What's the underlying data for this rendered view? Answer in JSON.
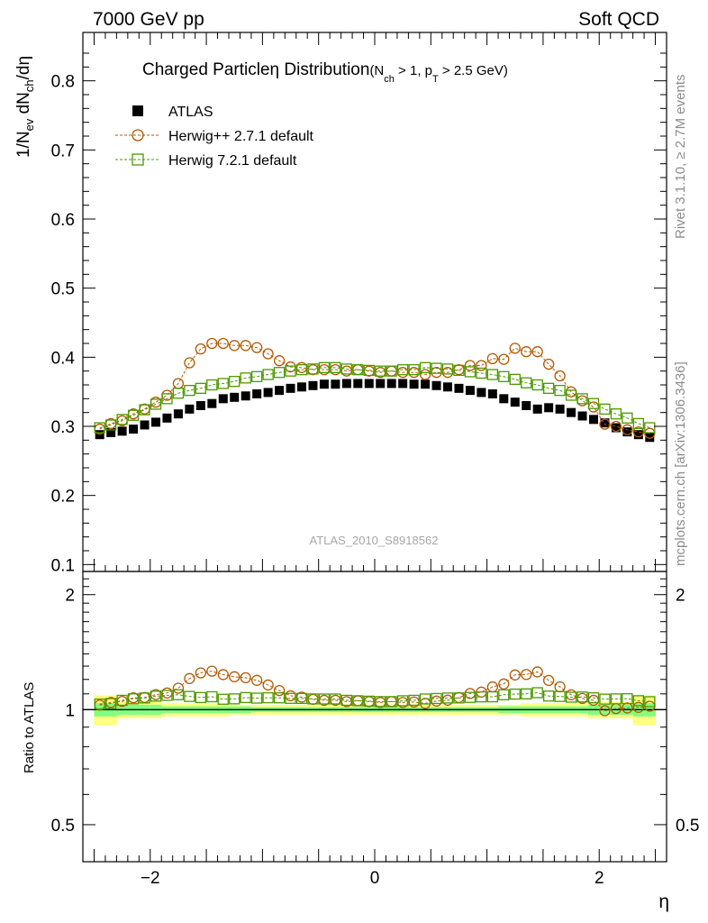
{
  "header": {
    "left": "7000 GeV pp",
    "right": "Soft QCD"
  },
  "side_text": {
    "rivet": "Rivet 3.1.10, ≥ 2.7M events",
    "mcplots": "mcplots.cern.ch [arXiv:1306.3436]"
  },
  "watermark": "ATLAS_2010_S8918562",
  "chart_data": {
    "type": "scatter",
    "title": {
      "main": "Charged Particle",
      "eta": "η",
      "dist": " Distribution",
      "cut_open": "(N",
      "cut_sub1": "ch",
      "cut_mid": " > 1, p",
      "cut_sub2": "T",
      "cut_close": " > 2.5 GeV)"
    },
    "ylabel_top": {
      "a": "1/N",
      "a_sub": "ev",
      "b": " dN",
      "b_sub": "ch",
      "c": "/dη"
    },
    "ylabel_bottom": "Ratio to ATLAS",
    "xlabel": "η",
    "xlim": [
      -2.6,
      2.6
    ],
    "ylim_top": [
      0.09,
      0.87
    ],
    "ylim_bottom": [
      0.4,
      2.3
    ],
    "xticks": [
      {
        "v": -2,
        "label": "−2"
      },
      {
        "v": 0,
        "label": "0"
      },
      {
        "v": 2,
        "label": "2"
      }
    ],
    "yticks_top": [
      {
        "v": 0.1,
        "label": "0.1"
      },
      {
        "v": 0.2,
        "label": "0.2"
      },
      {
        "v": 0.3,
        "label": "0.3"
      },
      {
        "v": 0.4,
        "label": "0.4"
      },
      {
        "v": 0.5,
        "label": "0.5"
      },
      {
        "v": 0.6,
        "label": "0.6"
      },
      {
        "v": 0.7,
        "label": "0.7"
      },
      {
        "v": 0.8,
        "label": "0.8"
      }
    ],
    "yticks_bottom": [
      {
        "v": 0.5,
        "label": "0.5"
      },
      {
        "v": 1,
        "label": "1"
      },
      {
        "v": 2,
        "label": "2"
      }
    ],
    "yticks_bottom_right": [
      {
        "v": 0.5,
        "label": "0.5"
      },
      {
        "v": 2,
        "label": "2"
      }
    ],
    "eta": [
      -2.45,
      -2.35,
      -2.25,
      -2.15,
      -2.05,
      -1.95,
      -1.85,
      -1.75,
      -1.65,
      -1.55,
      -1.45,
      -1.35,
      -1.25,
      -1.15,
      -1.05,
      -0.95,
      -0.85,
      -0.75,
      -0.65,
      -0.55,
      -0.45,
      -0.35,
      -0.25,
      -0.15,
      -0.05,
      0.05,
      0.15,
      0.25,
      0.35,
      0.45,
      0.55,
      0.65,
      0.75,
      0.85,
      0.95,
      1.05,
      1.15,
      1.25,
      1.35,
      1.45,
      1.55,
      1.65,
      1.75,
      1.85,
      1.95,
      2.05,
      2.15,
      2.25,
      2.35,
      2.45
    ],
    "series": [
      {
        "name": "ATLAS",
        "marker": "filled-square",
        "color": "#000000",
        "values": [
          0.288,
          0.291,
          0.293,
          0.296,
          0.302,
          0.306,
          0.312,
          0.318,
          0.325,
          0.33,
          0.333,
          0.34,
          0.342,
          0.344,
          0.347,
          0.349,
          0.352,
          0.355,
          0.357,
          0.359,
          0.361,
          0.361,
          0.362,
          0.362,
          0.362,
          0.362,
          0.362,
          0.362,
          0.361,
          0.361,
          0.359,
          0.357,
          0.355,
          0.352,
          0.349,
          0.347,
          0.34,
          0.335,
          0.33,
          0.325,
          0.327,
          0.325,
          0.32,
          0.315,
          0.31,
          0.305,
          0.298,
          0.292,
          0.288,
          0.284
        ]
      },
      {
        "name": "Herwig++ 2.7.1 default",
        "marker": "open-circle",
        "color": "#b35900",
        "values": [
          0.296,
          0.304,
          0.308,
          0.318,
          0.325,
          0.335,
          0.345,
          0.362,
          0.392,
          0.412,
          0.42,
          0.42,
          0.417,
          0.417,
          0.414,
          0.405,
          0.395,
          0.386,
          0.385,
          0.382,
          0.382,
          0.382,
          0.38,
          0.382,
          0.38,
          0.378,
          0.38,
          0.378,
          0.378,
          0.375,
          0.378,
          0.378,
          0.382,
          0.388,
          0.388,
          0.398,
          0.397,
          0.413,
          0.408,
          0.408,
          0.39,
          0.373,
          0.35,
          0.337,
          0.328,
          0.303,
          0.3,
          0.295,
          0.292,
          0.29
        ]
      },
      {
        "name": "Herwig 7.2.1 default",
        "marker": "open-square",
        "color": "#4d9900",
        "values": [
          0.298,
          0.302,
          0.31,
          0.316,
          0.324,
          0.332,
          0.34,
          0.348,
          0.352,
          0.355,
          0.36,
          0.362,
          0.365,
          0.37,
          0.372,
          0.375,
          0.378,
          0.38,
          0.382,
          0.383,
          0.385,
          0.385,
          0.383,
          0.382,
          0.381,
          0.38,
          0.38,
          0.382,
          0.382,
          0.385,
          0.384,
          0.383,
          0.381,
          0.379,
          0.377,
          0.375,
          0.372,
          0.368,
          0.363,
          0.36,
          0.355,
          0.352,
          0.345,
          0.34,
          0.333,
          0.325,
          0.318,
          0.312,
          0.304,
          0.298
        ]
      }
    ],
    "band_green": [
      0.04,
      0.04,
      0.03,
      0.03,
      0.03,
      0.03,
      0.02,
      0.02,
      0.02,
      0.02,
      0.02,
      0.02,
      0.02,
      0.02,
      0.015,
      0.015,
      0.015,
      0.015,
      0.015,
      0.015,
      0.015,
      0.015,
      0.015,
      0.015,
      0.015,
      0.015,
      0.015,
      0.015,
      0.015,
      0.015,
      0.015,
      0.015,
      0.015,
      0.015,
      0.015,
      0.015,
      0.02,
      0.02,
      0.02,
      0.02,
      0.02,
      0.02,
      0.02,
      0.02,
      0.03,
      0.03,
      0.03,
      0.03,
      0.04,
      0.04
    ],
    "band_yellow": [
      0.09,
      0.09,
      0.05,
      0.05,
      0.05,
      0.05,
      0.04,
      0.04,
      0.04,
      0.04,
      0.04,
      0.04,
      0.03,
      0.03,
      0.03,
      0.03,
      0.03,
      0.03,
      0.03,
      0.03,
      0.03,
      0.03,
      0.03,
      0.03,
      0.03,
      0.03,
      0.03,
      0.03,
      0.03,
      0.03,
      0.03,
      0.03,
      0.03,
      0.03,
      0.03,
      0.03,
      0.03,
      0.03,
      0.04,
      0.04,
      0.04,
      0.04,
      0.04,
      0.04,
      0.05,
      0.05,
      0.05,
      0.05,
      0.09,
      0.09
    ]
  }
}
